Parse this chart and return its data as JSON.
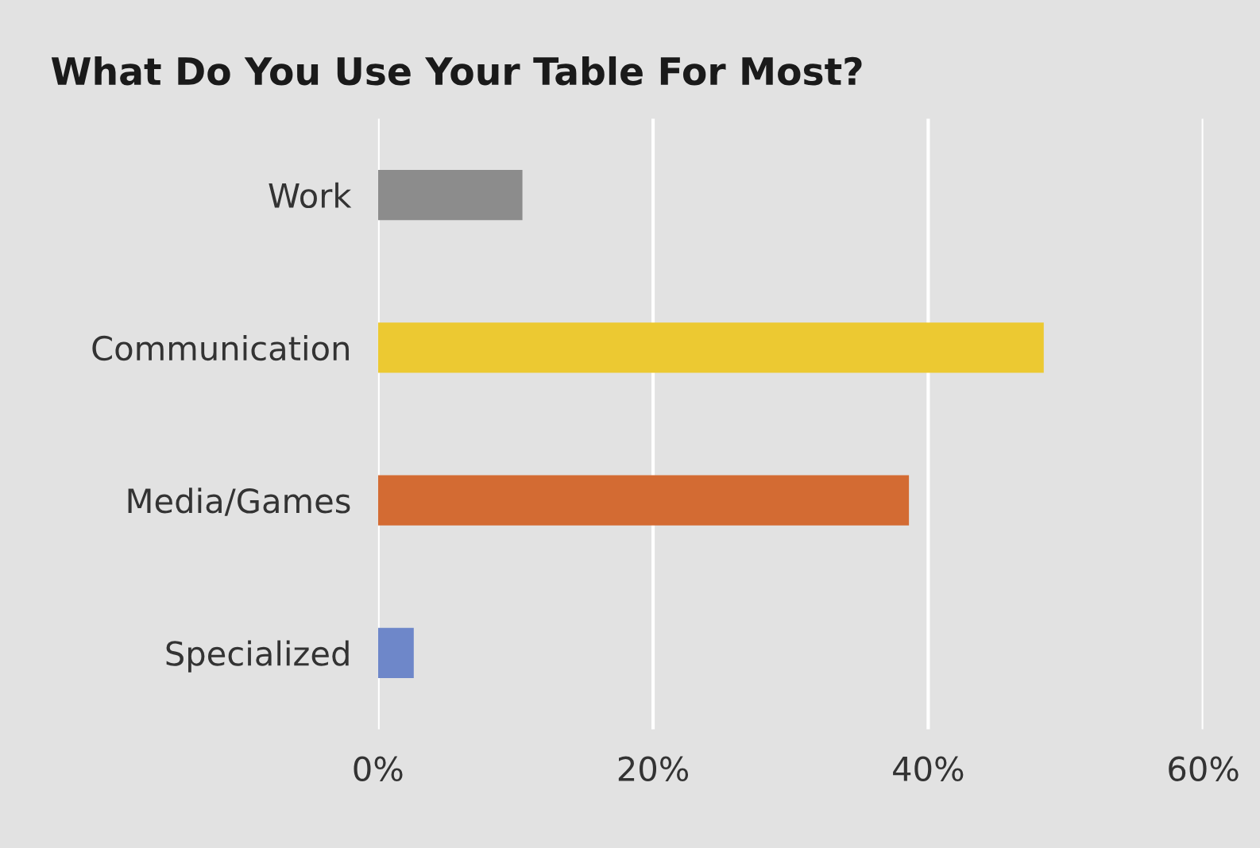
{
  "chart_data": {
    "type": "bar",
    "orientation": "horizontal",
    "title": "What Do You Use Your Table For Most?",
    "categories": [
      "Work",
      "Communication",
      "Media/Games",
      "Specialized"
    ],
    "values": [
      10.5,
      48.4,
      38.6,
      2.6
    ],
    "colors": [
      "#8c8c8c",
      "#ecc932",
      "#d36b33",
      "#6e87c9"
    ],
    "xlim": [
      0,
      60
    ],
    "xticks": [
      {
        "value": 0,
        "label": "0%"
      },
      {
        "value": 20,
        "label": "20%"
      },
      {
        "value": 40,
        "label": "40%"
      },
      {
        "value": 60,
        "label": "60%"
      }
    ],
    "grid": "x"
  }
}
